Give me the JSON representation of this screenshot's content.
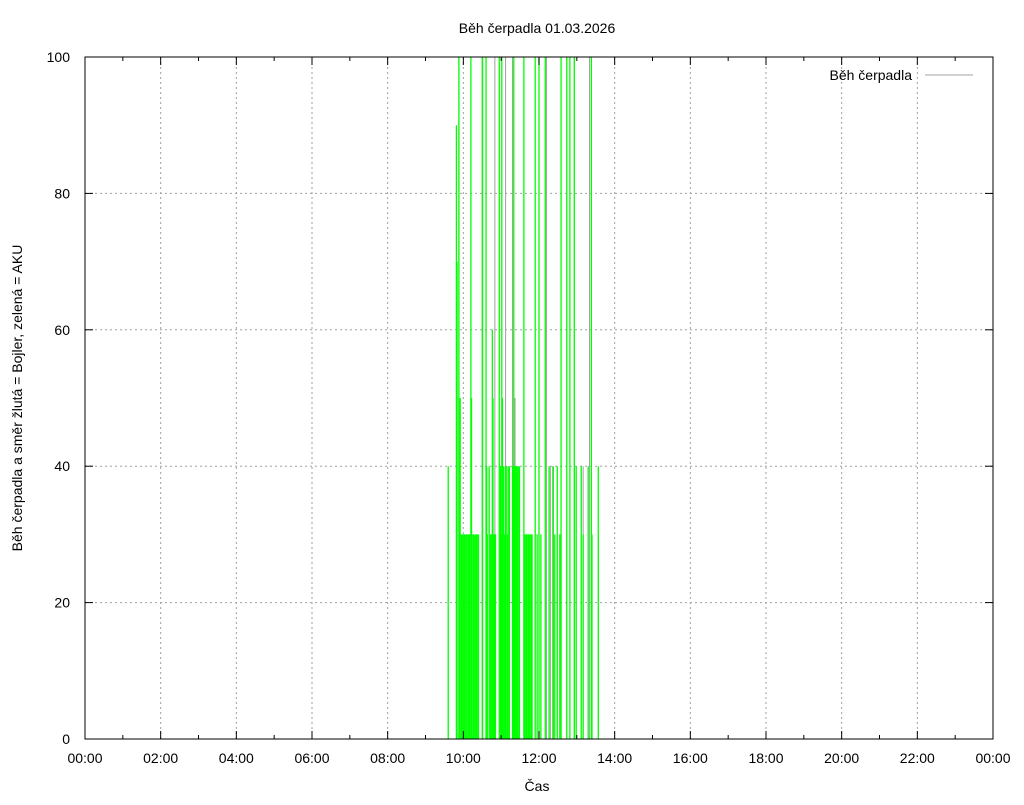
{
  "chart_data": {
    "type": "bar",
    "style": "impulses",
    "title": "Běh čerpadla 01.03.2026",
    "xlabel": "Čas",
    "ylabel": "Běh čerpadla a směr žlutá = Bojler, zelená = AKU",
    "xlim": [
      "00:00",
      "24:00"
    ],
    "ylim": [
      0,
      100
    ],
    "x_ticks": [
      "00:00",
      "02:00",
      "04:00",
      "06:00",
      "08:00",
      "10:00",
      "12:00",
      "14:00",
      "16:00",
      "18:00",
      "20:00",
      "22:00",
      "00:00"
    ],
    "y_ticks": [
      0,
      20,
      40,
      60,
      80,
      100
    ],
    "grid": true,
    "legend_position": "top-right",
    "series": [
      {
        "name": "Běh čerpadla",
        "color": "#a0a0a0",
        "points": [
          [
            "09:53",
            100
          ],
          [
            "10:31",
            100
          ],
          [
            "10:50",
            100
          ],
          [
            "11:07",
            100
          ],
          [
            "11:18",
            100
          ],
          [
            "11:22",
            50
          ],
          [
            "12:12",
            100
          ],
          [
            "12:18",
            40
          ],
          [
            "12:23",
            40
          ],
          [
            "12:56",
            100
          ],
          [
            "13:10",
            40
          ],
          [
            "13:20",
            100
          ]
        ]
      },
      {
        "color": "#00ff00",
        "points": [
          [
            "09:36",
            40
          ],
          [
            "09:49",
            90
          ],
          [
            "09:50",
            70
          ],
          [
            "09:53",
            100
          ],
          [
            "09:55",
            50
          ],
          [
            "09:57",
            30
          ],
          [
            "09:59",
            30
          ],
          [
            "10:00",
            30
          ],
          [
            "10:02",
            30
          ],
          [
            "10:03",
            30
          ],
          [
            "10:05",
            30
          ],
          [
            "10:06",
            30
          ],
          [
            "10:08",
            30
          ],
          [
            "10:10",
            30
          ],
          [
            "10:12",
            100
          ],
          [
            "10:13",
            50
          ],
          [
            "10:14",
            30
          ],
          [
            "10:16",
            30
          ],
          [
            "10:17",
            30
          ],
          [
            "10:19",
            30
          ],
          [
            "10:21",
            30
          ],
          [
            "10:22",
            30
          ],
          [
            "10:24",
            30
          ],
          [
            "10:30",
            100
          ],
          [
            "10:36",
            100
          ],
          [
            "10:37",
            40
          ],
          [
            "10:38",
            30
          ],
          [
            "10:41",
            40
          ],
          [
            "10:43",
            30
          ],
          [
            "10:45",
            30
          ],
          [
            "10:46",
            60
          ],
          [
            "10:47",
            50
          ],
          [
            "10:48",
            30
          ],
          [
            "10:49",
            30
          ],
          [
            "10:51",
            30
          ],
          [
            "10:57",
            100
          ],
          [
            "10:59",
            40
          ],
          [
            "11:00",
            30
          ],
          [
            "11:01",
            100
          ],
          [
            "11:02",
            50
          ],
          [
            "11:04",
            40
          ],
          [
            "11:05",
            30
          ],
          [
            "11:07",
            40
          ],
          [
            "11:08",
            40
          ],
          [
            "11:10",
            30
          ],
          [
            "11:11",
            40
          ],
          [
            "11:13",
            40
          ],
          [
            "11:18",
            40
          ],
          [
            "11:19",
            40
          ],
          [
            "11:20",
            100
          ],
          [
            "11:21",
            40
          ],
          [
            "11:23",
            40
          ],
          [
            "11:24",
            40
          ],
          [
            "11:26",
            40
          ],
          [
            "11:27",
            40
          ],
          [
            "11:29",
            40
          ],
          [
            "11:36",
            100
          ],
          [
            "11:38",
            30
          ],
          [
            "11:40",
            30
          ],
          [
            "11:41",
            30
          ],
          [
            "11:43",
            30
          ],
          [
            "11:44",
            30
          ],
          [
            "11:46",
            30
          ],
          [
            "11:48",
            30
          ],
          [
            "11:49",
            30
          ],
          [
            "11:54",
            100
          ],
          [
            "11:57",
            30
          ],
          [
            "12:00",
            100
          ],
          [
            "12:03",
            30
          ],
          [
            "12:10",
            100
          ],
          [
            "12:16",
            40
          ],
          [
            "12:22",
            40
          ],
          [
            "12:25",
            30
          ],
          [
            "12:29",
            40
          ],
          [
            "12:33",
            30
          ],
          [
            "12:35",
            100
          ],
          [
            "12:44",
            100
          ],
          [
            "12:49",
            100
          ],
          [
            "12:56",
            100
          ],
          [
            "12:59",
            40
          ],
          [
            "13:07",
            40
          ],
          [
            "13:10",
            30
          ],
          [
            "13:18",
            40
          ],
          [
            "13:23",
            100
          ],
          [
            "13:24",
            30
          ],
          [
            "13:34",
            40
          ]
        ]
      }
    ]
  }
}
